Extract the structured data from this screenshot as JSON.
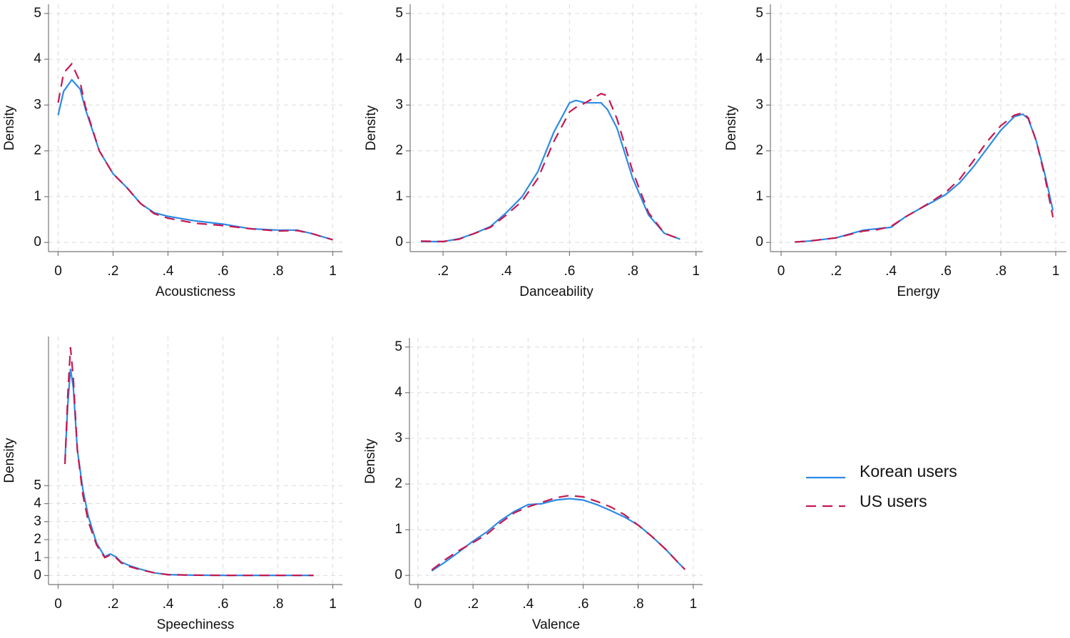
{
  "chart_data": [
    {
      "type": "line",
      "x_label": "Acousticness",
      "y_label": "Density",
      "x": [
        0,
        0.02,
        0.05,
        0.08,
        0.1,
        0.15,
        0.2,
        0.25,
        0.3,
        0.35,
        0.4,
        0.5,
        0.6,
        0.7,
        0.8,
        0.87,
        0.92,
        1
      ],
      "series": [
        {
          "name": "Korean users",
          "color": "#2b8be6",
          "dash": false,
          "values": [
            2.78,
            3.3,
            3.55,
            3.35,
            2.9,
            2.0,
            1.5,
            1.2,
            0.85,
            0.65,
            0.57,
            0.47,
            0.4,
            0.3,
            0.27,
            0.27,
            0.2,
            0.06
          ]
        },
        {
          "name": "US users",
          "color": "#c8174f",
          "dash": true,
          "values": [
            3.05,
            3.7,
            3.9,
            3.5,
            2.95,
            2.0,
            1.5,
            1.2,
            0.85,
            0.63,
            0.53,
            0.42,
            0.37,
            0.3,
            0.25,
            0.26,
            0.2,
            0.06
          ]
        }
      ],
      "xlim": [
        -0.035,
        1.035
      ],
      "ylim": [
        -0.2,
        5.2
      ],
      "xticks": [
        0,
        {
          "value": 0.2,
          "label": ".2"
        },
        {
          "value": 0.4,
          "label": ".4"
        },
        {
          "value": 0.6,
          "label": ".6"
        },
        {
          "value": 0.8,
          "label": ".8"
        },
        1
      ],
      "yticks": [
        0,
        1,
        2,
        3,
        4,
        5
      ],
      "grid": true
    },
    {
      "type": "line",
      "x_label": "Danceability",
      "y_label": "Density",
      "x": [
        0.13,
        0.2,
        0.25,
        0.3,
        0.35,
        0.4,
        0.45,
        0.5,
        0.55,
        0.6,
        0.62,
        0.65,
        0.7,
        0.72,
        0.75,
        0.8,
        0.85,
        0.9,
        0.95
      ],
      "series": [
        {
          "name": "Korean users",
          "color": "#2b8be6",
          "dash": false,
          "values": [
            0.02,
            0.02,
            0.08,
            0.2,
            0.35,
            0.65,
            1.0,
            1.55,
            2.4,
            3.05,
            3.1,
            3.05,
            3.05,
            2.9,
            2.5,
            1.4,
            0.6,
            0.2,
            0.07
          ]
        },
        {
          "name": "US users",
          "color": "#c8174f",
          "dash": true,
          "values": [
            0.03,
            0.02,
            0.07,
            0.2,
            0.33,
            0.6,
            0.9,
            1.4,
            2.2,
            2.85,
            2.95,
            3.05,
            3.25,
            3.2,
            2.7,
            1.55,
            0.65,
            0.2,
            0.07
          ]
        }
      ],
      "xlim": [
        0.096,
        1.021
      ],
      "ylim": [
        -0.2,
        5.2
      ],
      "xticks": [
        {
          "value": 0.2,
          "label": ".2"
        },
        {
          "value": 0.4,
          "label": ".4"
        },
        {
          "value": 0.6,
          "label": ".6"
        },
        {
          "value": 0.8,
          "label": ".8"
        },
        1
      ],
      "yticks": [
        0,
        1,
        2,
        3,
        4,
        5
      ],
      "grid": true
    },
    {
      "type": "line",
      "x_label": "Energy",
      "y_label": "Density",
      "x": [
        0.05,
        0.1,
        0.2,
        0.3,
        0.35,
        0.4,
        0.45,
        0.5,
        0.55,
        0.6,
        0.65,
        0.7,
        0.75,
        0.8,
        0.85,
        0.88,
        0.9,
        0.93,
        0.96,
        0.99
      ],
      "series": [
        {
          "name": "Korean users",
          "color": "#2b8be6",
          "dash": false,
          "values": [
            0.01,
            0.03,
            0.1,
            0.27,
            0.3,
            0.33,
            0.55,
            0.72,
            0.88,
            1.05,
            1.3,
            1.65,
            2.05,
            2.45,
            2.75,
            2.8,
            2.7,
            2.2,
            1.5,
            0.7
          ]
        },
        {
          "name": "US users",
          "color": "#c8174f",
          "dash": true,
          "values": [
            0.01,
            0.03,
            0.1,
            0.25,
            0.28,
            0.35,
            0.55,
            0.72,
            0.9,
            1.1,
            1.38,
            1.78,
            2.2,
            2.55,
            2.78,
            2.83,
            2.72,
            2.2,
            1.45,
            0.55
          ]
        }
      ],
      "xlim": [
        -0.039,
        1.039
      ],
      "ylim": [
        -0.2,
        5.2
      ],
      "xticks": [
        0,
        {
          "value": 0.2,
          "label": ".2"
        },
        {
          "value": 0.4,
          "label": ".4"
        },
        {
          "value": 0.6,
          "label": ".6"
        },
        {
          "value": 0.8,
          "label": ".8"
        },
        1
      ],
      "yticks": [
        0,
        1,
        2,
        3,
        4,
        5
      ],
      "grid": true
    },
    {
      "type": "line",
      "x_label": "Speechiness",
      "y_label": "Density",
      "x": [
        0.025,
        0.035,
        0.045,
        0.055,
        0.07,
        0.09,
        0.11,
        0.14,
        0.17,
        0.19,
        0.21,
        0.23,
        0.26,
        0.3,
        0.35,
        0.4,
        0.5,
        0.6,
        0.7,
        0.8,
        0.93
      ],
      "series": [
        {
          "name": "Korean users",
          "color": "#2b8be6",
          "dash": false,
          "values": [
            6.4,
            9.5,
            11.5,
            10.5,
            7,
            4.8,
            3.3,
            1.8,
            1.05,
            1.2,
            1.05,
            0.75,
            0.55,
            0.35,
            0.15,
            0.05,
            0.02,
            0.01,
            0.01,
            0.01,
            0.01
          ]
        },
        {
          "name": "US users",
          "color": "#c8174f",
          "dash": true,
          "values": [
            6.2,
            10,
            12.7,
            11,
            7,
            4.5,
            3.0,
            1.7,
            1.0,
            1.15,
            1.0,
            0.7,
            0.5,
            0.32,
            0.15,
            0.05,
            0.02,
            0.01,
            0.01,
            0.01,
            0.01
          ]
        }
      ],
      "xlim": [
        -0.035,
        1.035
      ],
      "ylim": [
        -0.5,
        13.3
      ],
      "xticks": [
        0,
        {
          "value": 0.2,
          "label": ".2"
        },
        {
          "value": 0.4,
          "label": ".4"
        },
        {
          "value": 0.6,
          "label": ".6"
        },
        {
          "value": 0.8,
          "label": ".8"
        },
        1
      ],
      "yticks": [
        0,
        1,
        2,
        3,
        4,
        5
      ],
      "grid": true
    },
    {
      "type": "line",
      "x_label": "Valence",
      "y_label": "Density",
      "x": [
        0.05,
        0.1,
        0.15,
        0.2,
        0.25,
        0.3,
        0.35,
        0.4,
        0.45,
        0.5,
        0.55,
        0.6,
        0.65,
        0.7,
        0.75,
        0.8,
        0.85,
        0.9,
        0.95,
        0.97
      ],
      "series": [
        {
          "name": "Korean users",
          "color": "#2b8be6",
          "dash": false,
          "values": [
            0.1,
            0.3,
            0.52,
            0.75,
            0.95,
            1.2,
            1.4,
            1.55,
            1.57,
            1.65,
            1.68,
            1.65,
            1.55,
            1.42,
            1.28,
            1.1,
            0.85,
            0.57,
            0.25,
            0.13
          ]
        },
        {
          "name": "US users",
          "color": "#c8174f",
          "dash": true,
          "values": [
            0.12,
            0.35,
            0.55,
            0.72,
            0.9,
            1.15,
            1.37,
            1.5,
            1.6,
            1.7,
            1.75,
            1.72,
            1.62,
            1.5,
            1.33,
            1.1,
            0.85,
            0.57,
            0.25,
            0.13
          ]
        }
      ],
      "xlim": [
        -0.031,
        1.034
      ],
      "ylim": [
        -0.2,
        5.2
      ],
      "xticks": [
        0,
        {
          "value": 0.2,
          "label": ".2"
        },
        {
          "value": 0.4,
          "label": ".4"
        },
        {
          "value": 0.6,
          "label": ".6"
        },
        {
          "value": 0.8,
          "label": ".8"
        },
        1
      ],
      "yticks": [
        0,
        1,
        2,
        3,
        4,
        5
      ],
      "grid": true
    }
  ]
}
